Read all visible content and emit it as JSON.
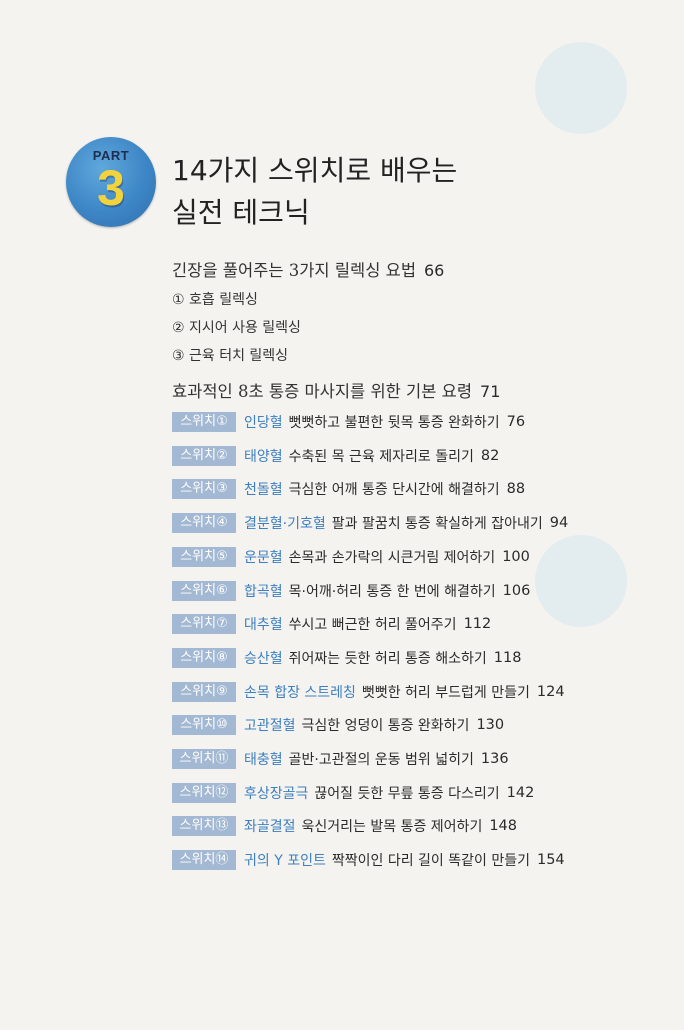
{
  "part": {
    "label": "PART",
    "number": "3"
  },
  "title": {
    "line1": "14가지 스위치로 배우는",
    "line2": "실전 테크닉"
  },
  "section1": {
    "title": "긴장을 풀어주는 3가지 릴렉싱 요법",
    "page": "66",
    "items": [
      "① 호흡 릴렉싱",
      "② 지시어 사용 릴렉싱",
      "③ 근육 터치 릴렉싱"
    ]
  },
  "section2": {
    "title": "효과적인 8초 통증 마사지를 위한 기본 요령",
    "page": "71"
  },
  "entries": [
    {
      "tag": "스위치①",
      "point": "인당혈",
      "desc": "뻣뻣하고 불편한 뒷목 통증 완화하기",
      "page": "76"
    },
    {
      "tag": "스위치②",
      "point": "태양혈",
      "desc": "수축된 목 근육 제자리로 돌리기",
      "page": "82"
    },
    {
      "tag": "스위치③",
      "point": "천돌혈",
      "desc": "극심한 어깨 통증 단시간에 해결하기",
      "page": "88"
    },
    {
      "tag": "스위치④",
      "point": "결분혈·기호혈",
      "desc": "팔과 팔꿈치 통증 확실하게 잡아내기",
      "page": "94"
    },
    {
      "tag": "스위치⑤",
      "point": "운문혈",
      "desc": "손목과 손가락의 시큰거림 제어하기",
      "page": "100"
    },
    {
      "tag": "스위치⑥",
      "point": "합곡혈",
      "desc": "목·어깨·허리 통증 한 번에 해결하기",
      "page": "106"
    },
    {
      "tag": "스위치⑦",
      "point": "대추혈",
      "desc": "쑤시고 뻐근한 허리 풀어주기",
      "page": "112"
    },
    {
      "tag": "스위치⑧",
      "point": "승산혈",
      "desc": "쥐어짜는 듯한 허리 통증 해소하기",
      "page": "118"
    },
    {
      "tag": "스위치⑨",
      "point": "손목 합장 스트레칭",
      "desc": "뻣뻣한 허리 부드럽게 만들기",
      "page": "124"
    },
    {
      "tag": "스위치⑩",
      "point": "고관절혈",
      "desc": "극심한 엉덩이 통증 완화하기",
      "page": "130"
    },
    {
      "tag": "스위치⑪",
      "point": "태충혈",
      "desc": "골반·고관절의 운동 범위 넓히기",
      "page": "136"
    },
    {
      "tag": "스위치⑫",
      "point": "후상장골극",
      "desc": "끊어질 듯한 무릎 통증 다스리기",
      "page": "142"
    },
    {
      "tag": "스위치⑬",
      "point": "좌골결절",
      "desc": "욱신거리는 발목 통증 제어하기",
      "page": "148"
    },
    {
      "tag": "스위치⑭",
      "point": "귀의 Y 포인트",
      "desc": "짝짝이인 다리 길이 똑같이 만들기",
      "page": "154"
    }
  ],
  "colors": {
    "badge": "#3d86c6",
    "badge_number": "#f3d33b",
    "tag_bg": "#a3b8d2",
    "point_text": "#3d7fc0"
  }
}
